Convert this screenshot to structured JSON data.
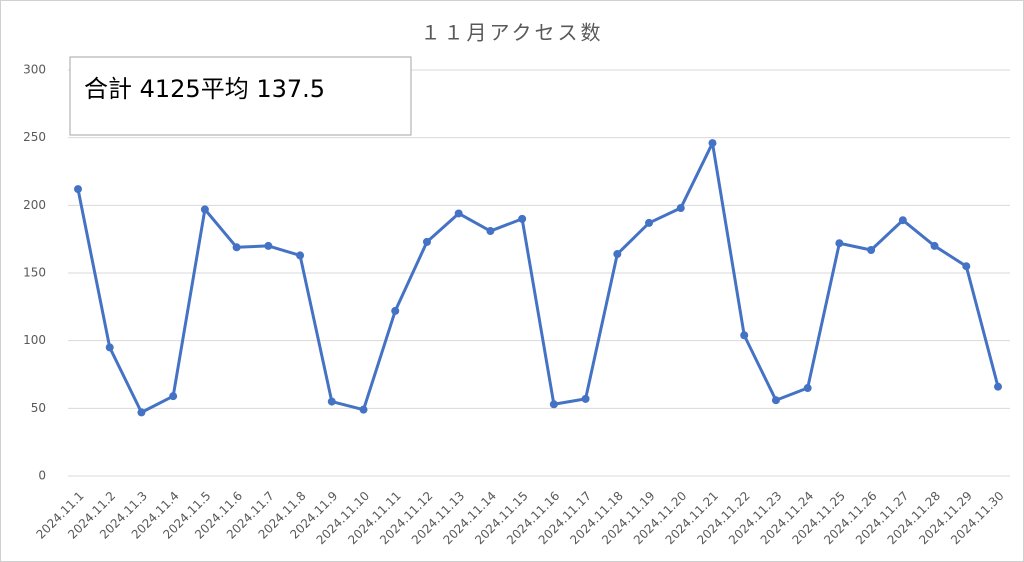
{
  "chart_data": {
    "type": "line",
    "title": "１１月アクセス数",
    "annotation": "合計 4125平均 137.5",
    "categories": [
      "2024.11.1",
      "2024.11.2",
      "2024.11.3",
      "2024.11.4",
      "2024.11.5",
      "2024.11.6",
      "2024.11.7",
      "2024.11.8",
      "2024.11.9",
      "2024.11.10",
      "2024.11.11",
      "2024.11.12",
      "2024.11.13",
      "2024.11.14",
      "2024.11.15",
      "2024.11.16",
      "2024.11.17",
      "2024.11.18",
      "2024.11.19",
      "2024.11.20",
      "2024.11.21",
      "2024.11.22",
      "2024.11.23",
      "2024.11.24",
      "2024.11.25",
      "2024.11.26",
      "2024.11.27",
      "2024.11.28",
      "2024.11.29",
      "2024.11.30"
    ],
    "values": [
      212,
      95,
      47,
      59,
      197,
      169,
      170,
      163,
      55,
      49,
      122,
      173,
      194,
      181,
      190,
      53,
      57,
      164,
      187,
      198,
      246,
      104,
      56,
      65,
      172,
      167,
      189,
      170,
      155,
      66
    ],
    "color": "#4472c4",
    "ylim": [
      0,
      300
    ],
    "yticks": [
      0,
      50,
      100,
      150,
      200,
      250,
      300
    ],
    "grid": true
  }
}
